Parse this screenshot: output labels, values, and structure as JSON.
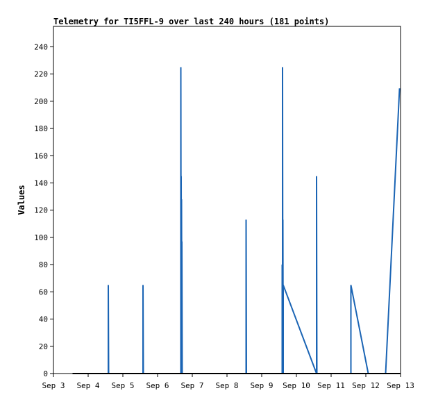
{
  "chart_data": {
    "type": "line",
    "title": "Telemetry for TI5FFL-9 over last 240 hours (181 points)",
    "xlabel": "",
    "ylabel": "Values",
    "ylim": [
      0,
      255
    ],
    "yticks": [
      0,
      20,
      40,
      60,
      80,
      100,
      120,
      140,
      160,
      180,
      200,
      220,
      240
    ],
    "xticks": [
      "Sep 3",
      "Sep 4",
      "Sep 5",
      "Sep 6",
      "Sep 7",
      "Sep 8",
      "Sep 9",
      "Sep 10",
      "Sep 11",
      "Sep 12",
      "Sep 13"
    ],
    "xlim_days": [
      3,
      13
    ],
    "grid": false,
    "series": [
      {
        "color": "#1a64b4",
        "points": [
          [
            4.58,
            0
          ],
          [
            4.58,
            65
          ],
          [
            4.59,
            0
          ],
          [
            5.58,
            0
          ],
          [
            5.58,
            65
          ],
          [
            5.59,
            0
          ],
          [
            6.67,
            0
          ],
          [
            6.67,
            225
          ],
          [
            6.68,
            0
          ],
          [
            6.68,
            145
          ],
          [
            6.69,
            0
          ],
          [
            6.69,
            128
          ],
          [
            6.7,
            0
          ],
          [
            6.7,
            97
          ],
          [
            6.71,
            0
          ],
          [
            8.55,
            0
          ],
          [
            8.55,
            113
          ],
          [
            8.56,
            0
          ],
          [
            9.59,
            0
          ],
          [
            9.59,
            80
          ],
          [
            9.6,
            0
          ],
          [
            9.6,
            225
          ],
          [
            9.61,
            0
          ],
          [
            9.61,
            113
          ],
          [
            9.62,
            0
          ],
          [
            9.62,
            65
          ],
          [
            10.58,
            0
          ],
          [
            10.58,
            145
          ],
          [
            10.59,
            0
          ],
          [
            11.57,
            0
          ],
          [
            11.57,
            65
          ],
          [
            12.07,
            0
          ],
          [
            12.57,
            0
          ],
          [
            12.97,
            209
          ],
          [
            13.0,
            209
          ]
        ]
      },
      {
        "color": "#000000",
        "points": [
          [
            3.55,
            0
          ],
          [
            13.0,
            0
          ]
        ]
      }
    ]
  }
}
